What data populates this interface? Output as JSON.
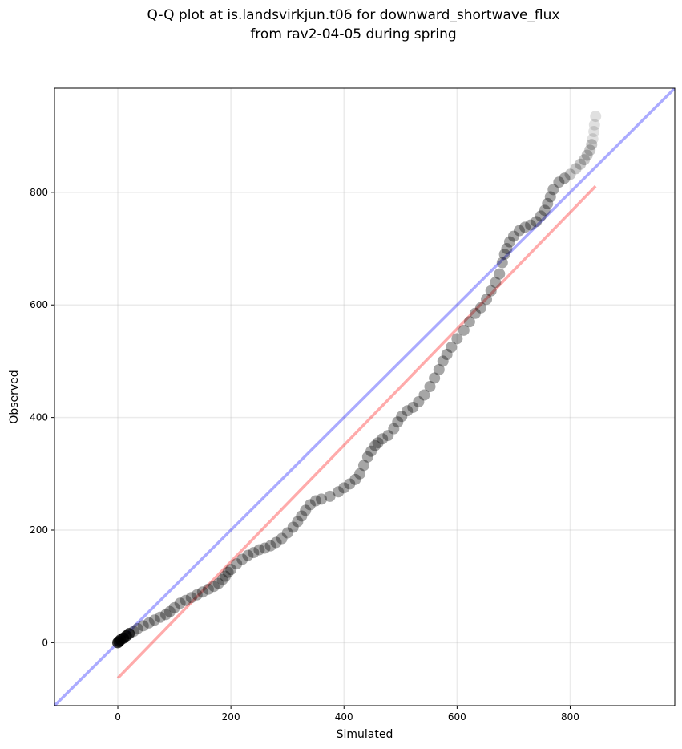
{
  "chart_data": {
    "type": "scatter",
    "title": "Q-Q plot at is.landsvirkjun.t06 for downward_shortwave_flux",
    "subtitle": "from rav2-04-05 during spring",
    "xlabel": "Simulated",
    "ylabel": "Observed",
    "xlim": [
      -112,
      985
    ],
    "ylim": [
      -112,
      985
    ],
    "xticks": [
      "0",
      "200",
      "400",
      "600",
      "800"
    ],
    "yticks": [
      "0",
      "200",
      "400",
      "600",
      "800"
    ],
    "grid": true,
    "colors": {
      "points": "#000000",
      "identity_line": "#0000ff",
      "fit_line": "#ff0000"
    },
    "identity_line": {
      "x": [
        -112,
        985
      ],
      "y": [
        -112,
        985
      ]
    },
    "fit_line": {
      "x": [
        0,
        845
      ],
      "y": [
        -63,
        811
      ]
    },
    "quantiles": {
      "x": [
        0,
        2,
        5,
        10,
        15,
        20,
        28,
        35,
        45,
        55,
        65,
        75,
        85,
        92,
        100,
        110,
        120,
        130,
        140,
        150,
        160,
        170,
        178,
        185,
        190,
        195,
        200,
        210,
        220,
        230,
        240,
        250,
        260,
        270,
        280,
        290,
        300,
        310,
        318,
        325,
        332,
        340,
        350,
        360,
        375,
        390,
        400,
        410,
        420,
        428,
        435,
        442,
        448,
        455,
        460,
        468,
        478,
        488,
        495,
        502,
        512,
        522,
        532,
        542,
        552,
        560,
        568,
        575,
        582,
        590,
        600,
        612,
        622,
        632,
        642,
        652,
        660,
        668,
        675,
        680,
        684,
        688,
        693,
        700,
        710,
        720,
        730,
        740,
        748,
        755,
        760,
        765,
        770,
        780,
        790,
        800,
        810,
        818,
        825,
        830,
        835,
        838,
        840,
        842,
        843,
        845
      ],
      "y": [
        0,
        2,
        5,
        8,
        12,
        16,
        20,
        25,
        30,
        35,
        40,
        45,
        50,
        55,
        62,
        70,
        75,
        80,
        85,
        90,
        95,
        100,
        105,
        112,
        118,
        125,
        130,
        140,
        148,
        155,
        160,
        165,
        168,
        172,
        178,
        185,
        195,
        205,
        215,
        225,
        235,
        245,
        252,
        255,
        260,
        268,
        275,
        282,
        290,
        300,
        315,
        330,
        340,
        350,
        355,
        362,
        368,
        380,
        392,
        402,
        412,
        418,
        428,
        440,
        455,
        470,
        485,
        500,
        512,
        525,
        540,
        555,
        570,
        585,
        595,
        610,
        625,
        640,
        655,
        675,
        690,
        700,
        712,
        722,
        732,
        738,
        742,
        748,
        758,
        768,
        780,
        792,
        805,
        818,
        825,
        832,
        842,
        850,
        858,
        866,
        875,
        885,
        895,
        908,
        920,
        935
      ]
    }
  }
}
